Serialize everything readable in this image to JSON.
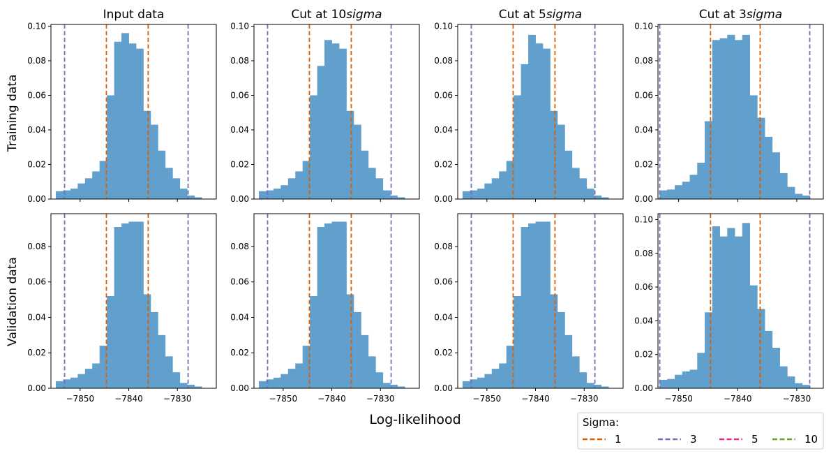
{
  "figure": {
    "xlabel": "Log-likelihood",
    "row_labels": [
      "Training data",
      "Validation data"
    ],
    "col_titles": [
      {
        "prefix": "Input data",
        "italic": ""
      },
      {
        "prefix": "Cut at 10",
        "italic": "sigma"
      },
      {
        "prefix": "Cut at 5",
        "italic": "sigma"
      },
      {
        "prefix": "Cut at 3",
        "italic": "sigma"
      }
    ],
    "legend": {
      "title": "Sigma:",
      "entries": [
        {
          "label": "1",
          "color": "#d95f02"
        },
        {
          "label": "3",
          "color": "#7570b3"
        },
        {
          "label": "5",
          "color": "#e7298a"
        },
        {
          "label": "10",
          "color": "#66a61e"
        }
      ]
    }
  },
  "chart_data": [
    {
      "type": "bar",
      "row": "Training data",
      "col_title": "Input data",
      "x_ticks": [
        -7850,
        -7840,
        -7830
      ],
      "xlim": [
        -7856,
        -7822
      ],
      "y_ticks": [
        0.0,
        0.02,
        0.04,
        0.06,
        0.08,
        0.1
      ],
      "ylim": [
        0,
        0.101
      ],
      "bin_edges": [
        -7855,
        -7853.5,
        -7852,
        -7850.5,
        -7849,
        -7847.5,
        -7846,
        -7844.5,
        -7843,
        -7841.5,
        -7840,
        -7838.5,
        -7837,
        -7835.5,
        -7834,
        -7832.5,
        -7831,
        -7829.5,
        -7828,
        -7826.5,
        -7825
      ],
      "values": [
        0.0045,
        0.005,
        0.006,
        0.009,
        0.012,
        0.016,
        0.022,
        0.06,
        0.091,
        0.096,
        0.09,
        0.087,
        0.051,
        0.043,
        0.028,
        0.018,
        0.012,
        0.006,
        0.002,
        0.001
      ],
      "vlines": [
        {
          "sigma": 1,
          "x": -7844.6
        },
        {
          "sigma": 1,
          "x": -7836.0
        },
        {
          "sigma": 3,
          "x": -7853.2
        },
        {
          "sigma": 3,
          "x": -7827.8
        }
      ]
    },
    {
      "type": "bar",
      "row": "Training data",
      "col_title": "Cut at 10sigma",
      "x_ticks": [
        -7850,
        -7840,
        -7830
      ],
      "xlim": [
        -7856,
        -7822
      ],
      "y_ticks": [
        0.0,
        0.02,
        0.04,
        0.06,
        0.08,
        0.1
      ],
      "ylim": [
        0,
        0.101
      ],
      "bin_edges": [
        -7855,
        -7853.5,
        -7852,
        -7850.5,
        -7849,
        -7847.5,
        -7846,
        -7844.5,
        -7843,
        -7841.5,
        -7840,
        -7838.5,
        -7837,
        -7835.5,
        -7834,
        -7832.5,
        -7831,
        -7829.5,
        -7828,
        -7826.5,
        -7825
      ],
      "values": [
        0.0045,
        0.005,
        0.006,
        0.008,
        0.012,
        0.016,
        0.022,
        0.06,
        0.077,
        0.092,
        0.09,
        0.087,
        0.051,
        0.043,
        0.028,
        0.018,
        0.012,
        0.005,
        0.002,
        0.001
      ],
      "vlines": [
        {
          "sigma": 1,
          "x": -7844.6
        },
        {
          "sigma": 1,
          "x": -7836.0
        },
        {
          "sigma": 3,
          "x": -7853.2
        },
        {
          "sigma": 3,
          "x": -7827.8
        }
      ]
    },
    {
      "type": "bar",
      "row": "Training data",
      "col_title": "Cut at 5sigma",
      "x_ticks": [
        -7850,
        -7840,
        -7830
      ],
      "xlim": [
        -7856,
        -7822
      ],
      "y_ticks": [
        0.0,
        0.02,
        0.04,
        0.06,
        0.08,
        0.1
      ],
      "ylim": [
        0,
        0.101
      ],
      "bin_edges": [
        -7855,
        -7853.5,
        -7852,
        -7850.5,
        -7849,
        -7847.5,
        -7846,
        -7844.5,
        -7843,
        -7841.5,
        -7840,
        -7838.5,
        -7837,
        -7835.5,
        -7834,
        -7832.5,
        -7831,
        -7829.5,
        -7828,
        -7826.5,
        -7825
      ],
      "values": [
        0.0045,
        0.005,
        0.006,
        0.009,
        0.012,
        0.016,
        0.022,
        0.06,
        0.078,
        0.095,
        0.09,
        0.087,
        0.051,
        0.043,
        0.028,
        0.018,
        0.012,
        0.006,
        0.002,
        0.001
      ],
      "vlines": [
        {
          "sigma": 1,
          "x": -7844.6
        },
        {
          "sigma": 1,
          "x": -7836.0
        },
        {
          "sigma": 3,
          "x": -7853.2
        },
        {
          "sigma": 3,
          "x": -7827.8
        }
      ]
    },
    {
      "type": "bar",
      "row": "Training data",
      "col_title": "Cut at 3sigma",
      "x_ticks": [
        -7850,
        -7840,
        -7830
      ],
      "xlim": [
        -7853.5,
        -7825.5
      ],
      "y_ticks": [
        0.0,
        0.02,
        0.04,
        0.06,
        0.08,
        0.1
      ],
      "ylim": [
        0,
        0.101
      ],
      "bin_edges": [
        -7853.2,
        -7851.93,
        -7850.66,
        -7849.39,
        -7848.12,
        -7846.85,
        -7845.58,
        -7844.31,
        -7843.04,
        -7841.77,
        -7840.5,
        -7839.23,
        -7837.96,
        -7836.69,
        -7835.42,
        -7834.15,
        -7832.88,
        -7831.61,
        -7830.34,
        -7829.07,
        -7827.8
      ],
      "values": [
        0.005,
        0.0055,
        0.008,
        0.01,
        0.014,
        0.021,
        0.045,
        0.092,
        0.093,
        0.095,
        0.092,
        0.095,
        0.06,
        0.047,
        0.036,
        0.027,
        0.015,
        0.007,
        0.003,
        0.002
      ],
      "vlines": [
        {
          "sigma": 1,
          "x": -7844.6
        },
        {
          "sigma": 1,
          "x": -7836.2
        },
        {
          "sigma": 3,
          "x": -7853.2
        },
        {
          "sigma": 3,
          "x": -7827.8
        }
      ]
    },
    {
      "type": "bar",
      "row": "Validation data",
      "col_title": "Input data",
      "x_ticks": [
        -7850,
        -7840,
        -7830
      ],
      "xlim": [
        -7856,
        -7822
      ],
      "y_ticks": [
        0.0,
        0.02,
        0.04,
        0.06,
        0.08
      ],
      "ylim": [
        0,
        0.0985
      ],
      "bin_edges": [
        -7855,
        -7853.5,
        -7852,
        -7850.5,
        -7849,
        -7847.5,
        -7846,
        -7844.5,
        -7843,
        -7841.5,
        -7840,
        -7838.5,
        -7837,
        -7835.5,
        -7834,
        -7832.5,
        -7831,
        -7829.5,
        -7828,
        -7826.5,
        -7825
      ],
      "values": [
        0.004,
        0.005,
        0.006,
        0.008,
        0.011,
        0.014,
        0.024,
        0.052,
        0.091,
        0.093,
        0.094,
        0.094,
        0.053,
        0.043,
        0.03,
        0.018,
        0.009,
        0.003,
        0.002,
        0.001
      ],
      "vlines": [
        {
          "sigma": 1,
          "x": -7844.6
        },
        {
          "sigma": 1,
          "x": -7836.0
        },
        {
          "sigma": 3,
          "x": -7853.2
        },
        {
          "sigma": 3,
          "x": -7827.8
        }
      ]
    },
    {
      "type": "bar",
      "row": "Validation data",
      "col_title": "Cut at 10sigma",
      "x_ticks": [
        -7850,
        -7840,
        -7830
      ],
      "xlim": [
        -7856,
        -7822
      ],
      "y_ticks": [
        0.0,
        0.02,
        0.04,
        0.06,
        0.08
      ],
      "ylim": [
        0,
        0.0985
      ],
      "bin_edges": [
        -7855,
        -7853.5,
        -7852,
        -7850.5,
        -7849,
        -7847.5,
        -7846,
        -7844.5,
        -7843,
        -7841.5,
        -7840,
        -7838.5,
        -7837,
        -7835.5,
        -7834,
        -7832.5,
        -7831,
        -7829.5,
        -7828,
        -7826.5,
        -7825
      ],
      "values": [
        0.004,
        0.005,
        0.006,
        0.008,
        0.011,
        0.014,
        0.024,
        0.052,
        0.091,
        0.093,
        0.094,
        0.094,
        0.053,
        0.043,
        0.03,
        0.018,
        0.009,
        0.003,
        0.002,
        0.001
      ],
      "vlines": [
        {
          "sigma": 1,
          "x": -7844.6
        },
        {
          "sigma": 1,
          "x": -7836.0
        },
        {
          "sigma": 3,
          "x": -7853.2
        },
        {
          "sigma": 3,
          "x": -7827.8
        }
      ]
    },
    {
      "type": "bar",
      "row": "Validation data",
      "col_title": "Cut at 5sigma",
      "x_ticks": [
        -7850,
        -7840,
        -7830
      ],
      "xlim": [
        -7856,
        -7822
      ],
      "y_ticks": [
        0.0,
        0.02,
        0.04,
        0.06,
        0.08
      ],
      "ylim": [
        0,
        0.0985
      ],
      "bin_edges": [
        -7855,
        -7853.5,
        -7852,
        -7850.5,
        -7849,
        -7847.5,
        -7846,
        -7844.5,
        -7843,
        -7841.5,
        -7840,
        -7838.5,
        -7837,
        -7835.5,
        -7834,
        -7832.5,
        -7831,
        -7829.5,
        -7828,
        -7826.5,
        -7825
      ],
      "values": [
        0.004,
        0.005,
        0.006,
        0.008,
        0.011,
        0.014,
        0.024,
        0.052,
        0.091,
        0.093,
        0.094,
        0.094,
        0.053,
        0.043,
        0.03,
        0.018,
        0.009,
        0.003,
        0.002,
        0.001
      ],
      "vlines": [
        {
          "sigma": 1,
          "x": -7844.6
        },
        {
          "sigma": 1,
          "x": -7836.0
        },
        {
          "sigma": 3,
          "x": -7853.2
        },
        {
          "sigma": 3,
          "x": -7827.8
        }
      ]
    },
    {
      "type": "bar",
      "row": "Validation data",
      "col_title": "Cut at 3sigma",
      "x_ticks": [
        -7850,
        -7840,
        -7830
      ],
      "xlim": [
        -7853.5,
        -7825.5
      ],
      "y_ticks": [
        0.0,
        0.02,
        0.04,
        0.06,
        0.08,
        0.1
      ],
      "ylim": [
        0,
        0.1035
      ],
      "bin_edges": [
        -7853.2,
        -7851.93,
        -7850.66,
        -7849.39,
        -7848.12,
        -7846.85,
        -7845.58,
        -7844.31,
        -7843.04,
        -7841.77,
        -7840.5,
        -7839.23,
        -7837.96,
        -7836.69,
        -7835.42,
        -7834.15,
        -7832.88,
        -7831.61,
        -7830.34,
        -7829.07,
        -7827.8
      ],
      "values": [
        0.005,
        0.0055,
        0.008,
        0.01,
        0.011,
        0.021,
        0.045,
        0.096,
        0.09,
        0.095,
        0.09,
        0.098,
        0.061,
        0.047,
        0.034,
        0.024,
        0.013,
        0.007,
        0.003,
        0.002
      ],
      "vlines": [
        {
          "sigma": 1,
          "x": -7844.6
        },
        {
          "sigma": 1,
          "x": -7836.2
        },
        {
          "sigma": 3,
          "x": -7853.2
        },
        {
          "sigma": 3,
          "x": -7827.8
        }
      ]
    }
  ]
}
